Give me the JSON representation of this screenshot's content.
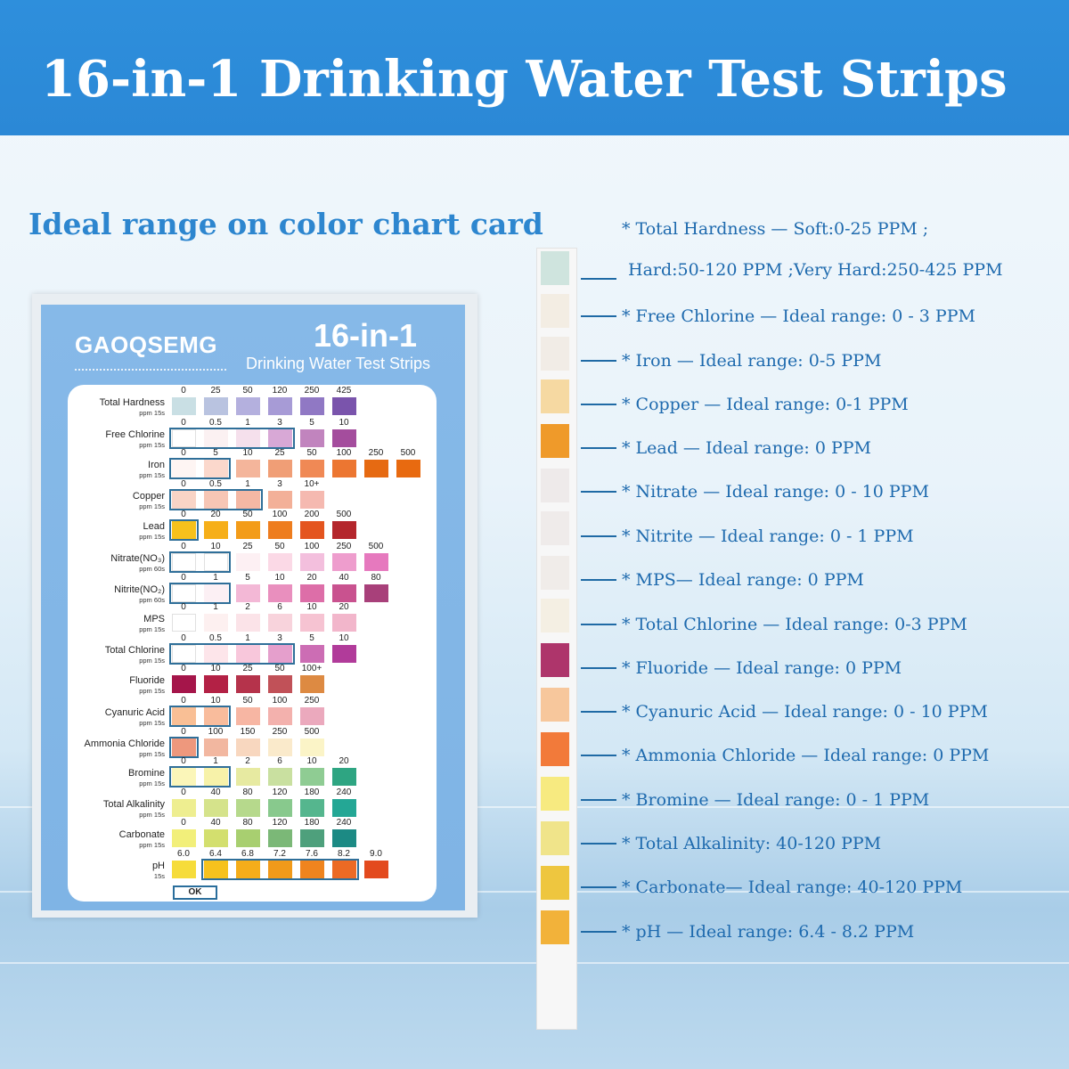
{
  "header": {
    "title": "16-in-1 Drinking Water Test Strips"
  },
  "subtitle": "Ideal range on color chart card",
  "card": {
    "brand": "GAOQSEMG",
    "title": "16-in-1",
    "subtitle": "Drinking Water Test Strips",
    "ok_label": "OK",
    "rows": [
      {
        "name": "Total Hardness",
        "unit": "ppm 15s",
        "ticks": [
          "0",
          "25",
          "50",
          "120",
          "250",
          "425"
        ],
        "colors": [
          "#c9dfe4",
          "#b9c3e0",
          "#b4b0de",
          "#a79bd6",
          "#9078c4",
          "#7a54ac"
        ]
      },
      {
        "name": "Free Chlorine",
        "unit": "ppm 15s",
        "ticks": [
          "0",
          "0.5",
          "1",
          "3",
          "5",
          "10"
        ],
        "colors": [
          "#ffffff",
          "#fbf1f2",
          "#f5e0ec",
          "#d8a8d6",
          "#c184be",
          "#a44d9d"
        ]
      },
      {
        "name": "Iron",
        "unit": "ppm 15s",
        "ticks": [
          "0",
          "5",
          "10",
          "25",
          "50",
          "100",
          "250",
          "500"
        ],
        "colors": [
          "#fef5f3",
          "#fbd8cc",
          "#f4b59b",
          "#f09e76",
          "#f08955",
          "#ec7631",
          "#e66a12",
          "#e86a10"
        ]
      },
      {
        "name": "Copper",
        "unit": "ppm 15s",
        "ticks": [
          "0",
          "0.5",
          "1",
          "3",
          "10+"
        ],
        "colors": [
          "#f9d4c6",
          "#f7c6b5",
          "#f4b8a4",
          "#f3b098",
          "#f5b9b0"
        ]
      },
      {
        "name": "Lead",
        "unit": "ppm 15s",
        "ticks": [
          "0",
          "20",
          "50",
          "100",
          "200",
          "500"
        ],
        "colors": [
          "#f6c11c",
          "#f6af19",
          "#f39c19",
          "#ee7d1e",
          "#e4551f",
          "#b4262c"
        ]
      },
      {
        "name": "Nitrate(NO₃)",
        "unit": "ppm 60s",
        "ticks": [
          "0",
          "10",
          "25",
          "50",
          "100",
          "250",
          "500"
        ],
        "colors": [
          "#ffffff",
          "#ffffff",
          "#fdf0f3",
          "#fbd9e6",
          "#f3bfdd",
          "#ee9dcd",
          "#e679be"
        ]
      },
      {
        "name": "Nitrite(NO₂)",
        "unit": "ppm 60s",
        "ticks": [
          "0",
          "1",
          "5",
          "10",
          "20",
          "40",
          "80"
        ],
        "colors": [
          "#ffffff",
          "#fcf0f4",
          "#f3b8d6",
          "#e98fbe",
          "#dd6ea8",
          "#c9528f",
          "#a8407a"
        ]
      },
      {
        "name": "MPS",
        "unit": "ppm 15s",
        "ticks": [
          "0",
          "1",
          "2",
          "6",
          "10",
          "20"
        ],
        "colors": [
          "#ffffff",
          "#fdf0f0",
          "#fbe3e8",
          "#f8d3dc",
          "#f6c3d2",
          "#f2b6cb"
        ]
      },
      {
        "name": "Total Chlorine",
        "unit": "ppm 15s",
        "ticks": [
          "0",
          "0.5",
          "1",
          "3",
          "5",
          "10"
        ],
        "colors": [
          "#ffffff",
          "#fde5ea",
          "#f8c7db",
          "#e59fcc",
          "#cc6db4",
          "#b13b9a"
        ]
      },
      {
        "name": "Fluoride",
        "unit": "ppm 15s",
        "ticks": [
          "0",
          "10",
          "25",
          "50",
          "100+"
        ],
        "colors": [
          "#a5154a",
          "#b32145",
          "#b5334b",
          "#c15158",
          "#dd8a42"
        ]
      },
      {
        "name": "Cyanuric Acid",
        "unit": "ppm 15s",
        "ticks": [
          "0",
          "10",
          "50",
          "100",
          "250"
        ],
        "colors": [
          "#f9bf95",
          "#f9bc9c",
          "#f7b6a3",
          "#f3b1ad",
          "#eba9bd"
        ]
      },
      {
        "name": "Ammonia Chloride",
        "unit": "ppm 15s",
        "ticks": [
          "0",
          "100",
          "150",
          "250",
          "500"
        ],
        "colors": [
          "#ee987d",
          "#f2b7a0",
          "#f8d7bf",
          "#faeacb",
          "#fbf4c7"
        ]
      },
      {
        "name": "Bromine",
        "unit": "ppm 15s",
        "ticks": [
          "0",
          "1",
          "2",
          "6",
          "10",
          "20"
        ],
        "colors": [
          "#fbf6b9",
          "#f7f2a9",
          "#e7eaa1",
          "#c9e0a0",
          "#8fcc93",
          "#2ea582"
        ]
      },
      {
        "name": "Total Alkalinity",
        "unit": "ppm 15s",
        "ticks": [
          "0",
          "40",
          "80",
          "120",
          "180",
          "240"
        ],
        "colors": [
          "#eeee90",
          "#d5e38b",
          "#b6d98c",
          "#88c98d",
          "#55b68e",
          "#24a795"
        ]
      },
      {
        "name": "Carbonate",
        "unit": "ppm 15s",
        "ticks": [
          "0",
          "40",
          "80",
          "120",
          "180",
          "240"
        ],
        "colors": [
          "#f2ef7a",
          "#d3df6e",
          "#a8cf70",
          "#7bb877",
          "#4ea07c",
          "#1c8a84"
        ]
      },
      {
        "name": "pH",
        "unit": "15s",
        "ticks": [
          "6.0",
          "6.4",
          "6.8",
          "7.2",
          "7.6",
          "8.2",
          "9.0"
        ],
        "colors": [
          "#f6dc3a",
          "#f6c21d",
          "#f5ad1a",
          "#f19a1a",
          "#ef841e",
          "#ec6a24",
          "#e34a1e"
        ]
      }
    ]
  },
  "strip": {
    "pads": [
      "#cfe4de",
      "#f3ede3",
      "#f1ece6",
      "#f6d9a2",
      "#ef9a2a",
      "#eeeaea",
      "#efebea",
      "#f0ece9",
      "#f4efe3",
      "#ae356b",
      "#f7c79c",
      "#f27a3a",
      "#f7ea80",
      "#f0e48a",
      "#eec63f",
      "#f2b23a"
    ],
    "labels": [
      "* Total Hardness — Soft:0-25 PPM ;",
      "Hard:50-120 PPM ;Very Hard:250-425 PPM",
      "* Free Chlorine — Ideal range: 0 - 3 PPM",
      "* Iron — Ideal range: 0-5 PPM",
      "* Copper — Ideal range: 0-1 PPM",
      "* Lead — Ideal range: 0 PPM",
      "* Nitrate — Ideal range: 0 - 10 PPM",
      "* Nitrite — Ideal range: 0 - 1 PPM",
      "* MPS— Ideal range: 0 PPM",
      "* Total Chlorine — Ideal range: 0-3 PPM",
      "* Fluoride — Ideal range: 0 PPM",
      "* Cyanuric Acid — Ideal range: 0 - 10 PPM",
      "* Ammonia Chloride — Ideal range: 0 PPM",
      "* Bromine — Ideal range: 0 - 1 PPM",
      "* Total Alkalinity: 40-120 PPM",
      "* Carbonate— Ideal range: 40-120 PPM",
      "* pH — Ideal range: 6.4 - 8.2 PPM"
    ]
  }
}
